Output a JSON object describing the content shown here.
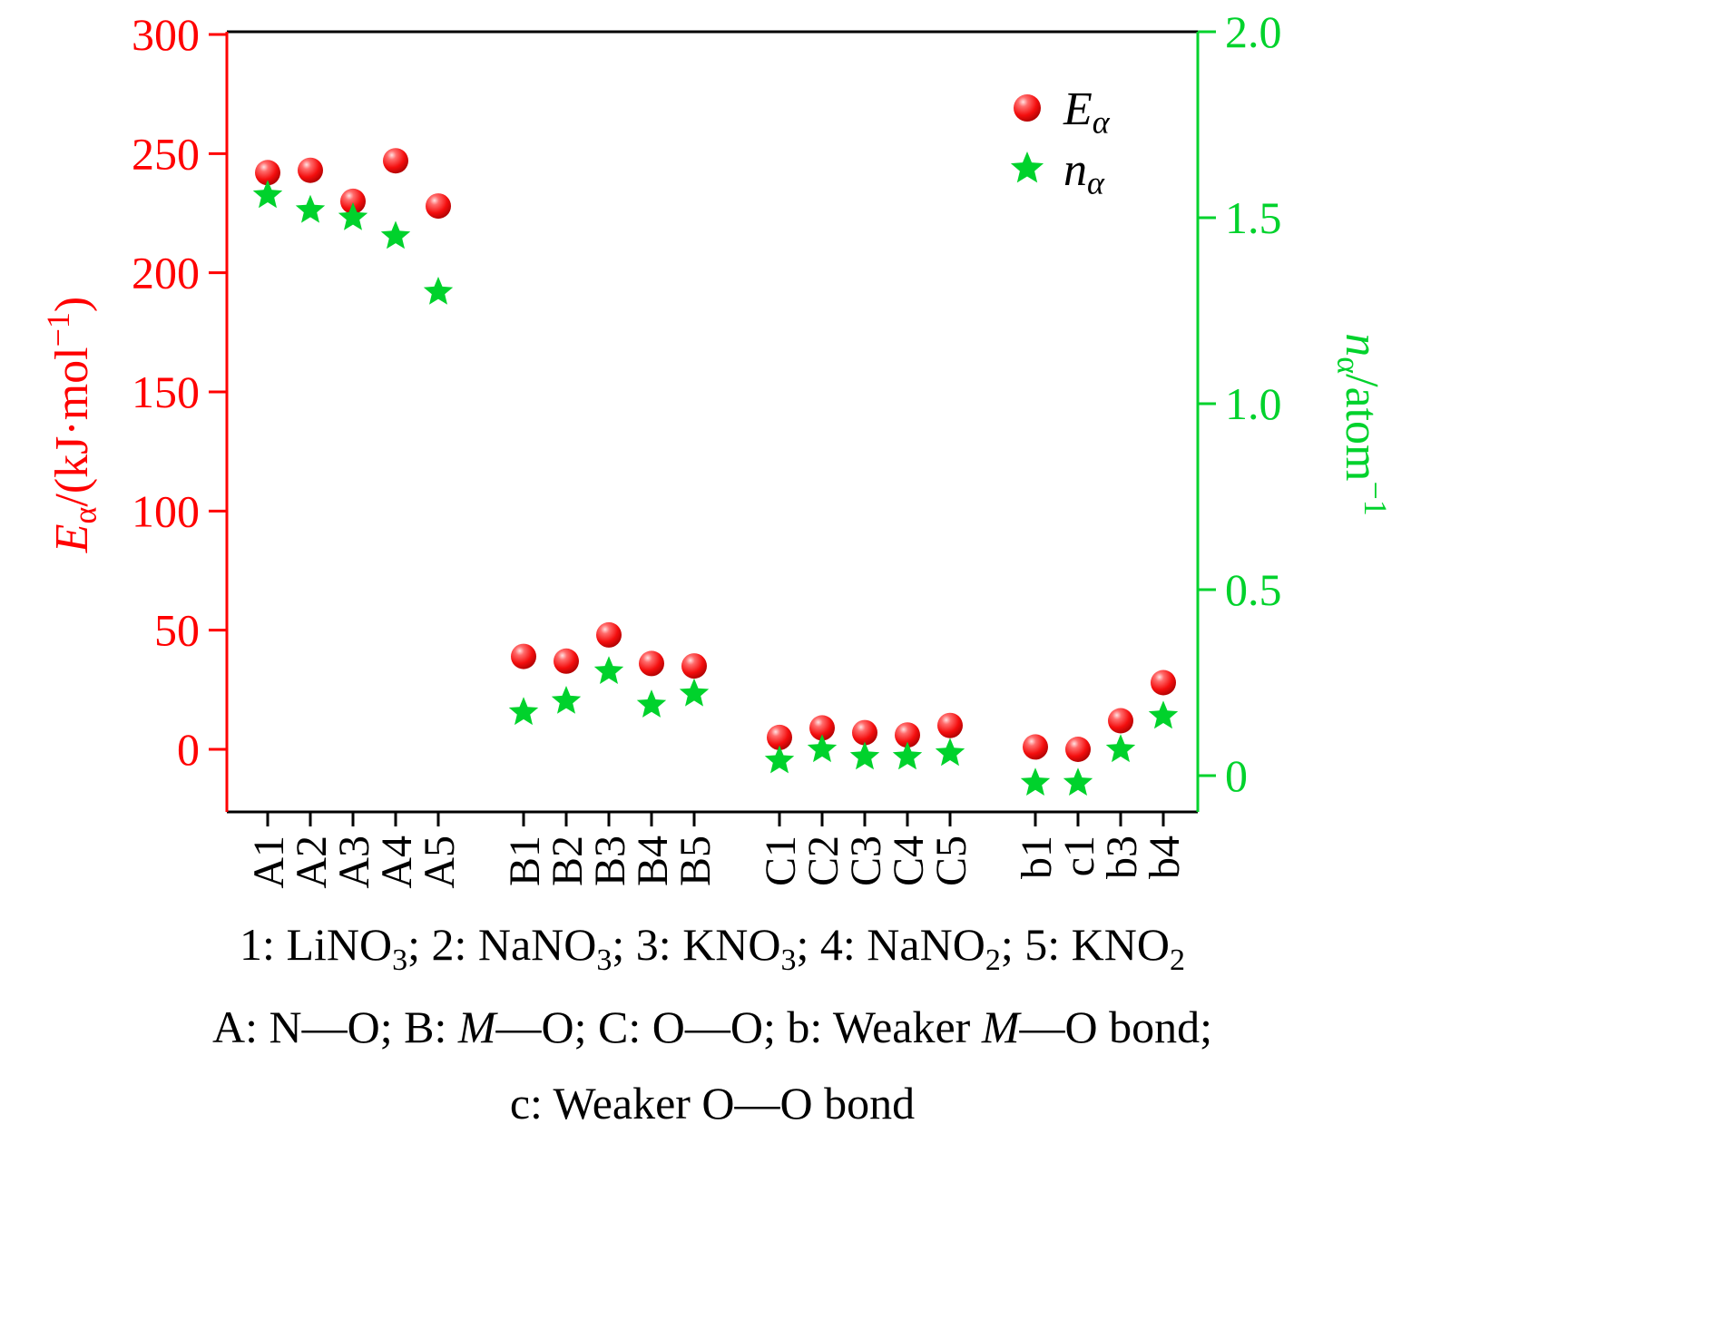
{
  "colors": {
    "red": "#FF0000",
    "green": "#00D22C",
    "black": "#000000"
  },
  "legend": {
    "position": "top-right",
    "items": [
      {
        "symbol": "sphere-circle",
        "label": [
          {
            "t": "E",
            "i": true
          },
          {
            "t": "α",
            "sub": true,
            "i": true
          }
        ]
      },
      {
        "symbol": "star",
        "label": [
          {
            "t": "n",
            "i": true
          },
          {
            "t": "α",
            "sub": true,
            "i": true
          }
        ]
      }
    ]
  },
  "axes": {
    "left": {
      "title_segments": [
        {
          "t": "E",
          "i": true
        },
        {
          "t": "α",
          "sub": true
        },
        {
          "t": "/(kJ·mol"
        },
        {
          "t": "−1",
          "sup": true
        },
        {
          "t": ")"
        }
      ],
      "title_plain": "Eα/(kJ·mol−1)",
      "ticks": [
        0,
        50,
        100,
        150,
        200,
        250,
        300
      ]
    },
    "right": {
      "title_segments": [
        {
          "t": "n",
          "i": true
        },
        {
          "t": "α",
          "sub": true
        },
        {
          "t": "/atom"
        },
        {
          "t": "−1",
          "sup": true
        }
      ],
      "title_plain": "nα/atom−1",
      "ticks": [
        {
          "v": 0,
          "label": "0"
        },
        {
          "v": 0.5,
          "label": "0.5"
        },
        {
          "v": 1,
          "label": "1.0"
        },
        {
          "v": 1.5,
          "label": "1.5"
        },
        {
          "v": 2,
          "label": "2.0"
        }
      ]
    },
    "x": {
      "groups": [
        5,
        5,
        5,
        4
      ]
    }
  },
  "chart_data": {
    "type": "scatter",
    "categories": [
      "A1",
      "A2",
      "A3",
      "A4",
      "A5",
      "B1",
      "B2",
      "B3",
      "B4",
      "B5",
      "C1",
      "C2",
      "C3",
      "C4",
      "C5",
      "b1",
      "c1",
      "b3",
      "b4"
    ],
    "series": [
      {
        "name": "E_alpha",
        "marker": "sphere-circle",
        "color": "#FF0000",
        "axis": "left",
        "values": [
          242,
          243,
          230,
          247,
          228,
          39,
          37,
          48,
          36,
          35,
          5,
          9,
          7,
          6,
          10,
          1,
          0,
          12,
          28
        ]
      },
      {
        "name": "n_alpha",
        "marker": "star",
        "color": "#00D22C",
        "axis": "right",
        "values": [
          1.56,
          1.52,
          1.5,
          1.45,
          1.3,
          0.17,
          0.2,
          0.28,
          0.19,
          0.22,
          0.04,
          0.07,
          0.05,
          0.05,
          0.06,
          -0.02,
          -0.02,
          0.07,
          0.16
        ]
      }
    ],
    "left_ylim": [
      -26,
      300
    ],
    "right_ylim": [
      -0.1,
      2.0
    ],
    "grid": false,
    "legend_position": "top-right",
    "title": ""
  },
  "captions": {
    "line1": [
      {
        "t": "1: LiNO"
      },
      {
        "t": "3",
        "sub": true
      },
      {
        "t": "; 2: NaNO"
      },
      {
        "t": "3",
        "sub": true
      },
      {
        "t": "; 3: KNO"
      },
      {
        "t": "3",
        "sub": true
      },
      {
        "t": "; 4: NaNO"
      },
      {
        "t": "2",
        "sub": true
      },
      {
        "t": "; 5: KNO"
      },
      {
        "t": "2",
        "sub": true
      }
    ],
    "line2": [
      {
        "t": "A: N—O; B: "
      },
      {
        "t": "M",
        "i": true
      },
      {
        "t": "—O; C: O—O; b: Weaker "
      },
      {
        "t": "M",
        "i": true
      },
      {
        "t": "—O bond;"
      }
    ],
    "line3": [
      {
        "t": "c: Weaker O—O bond"
      }
    ]
  }
}
